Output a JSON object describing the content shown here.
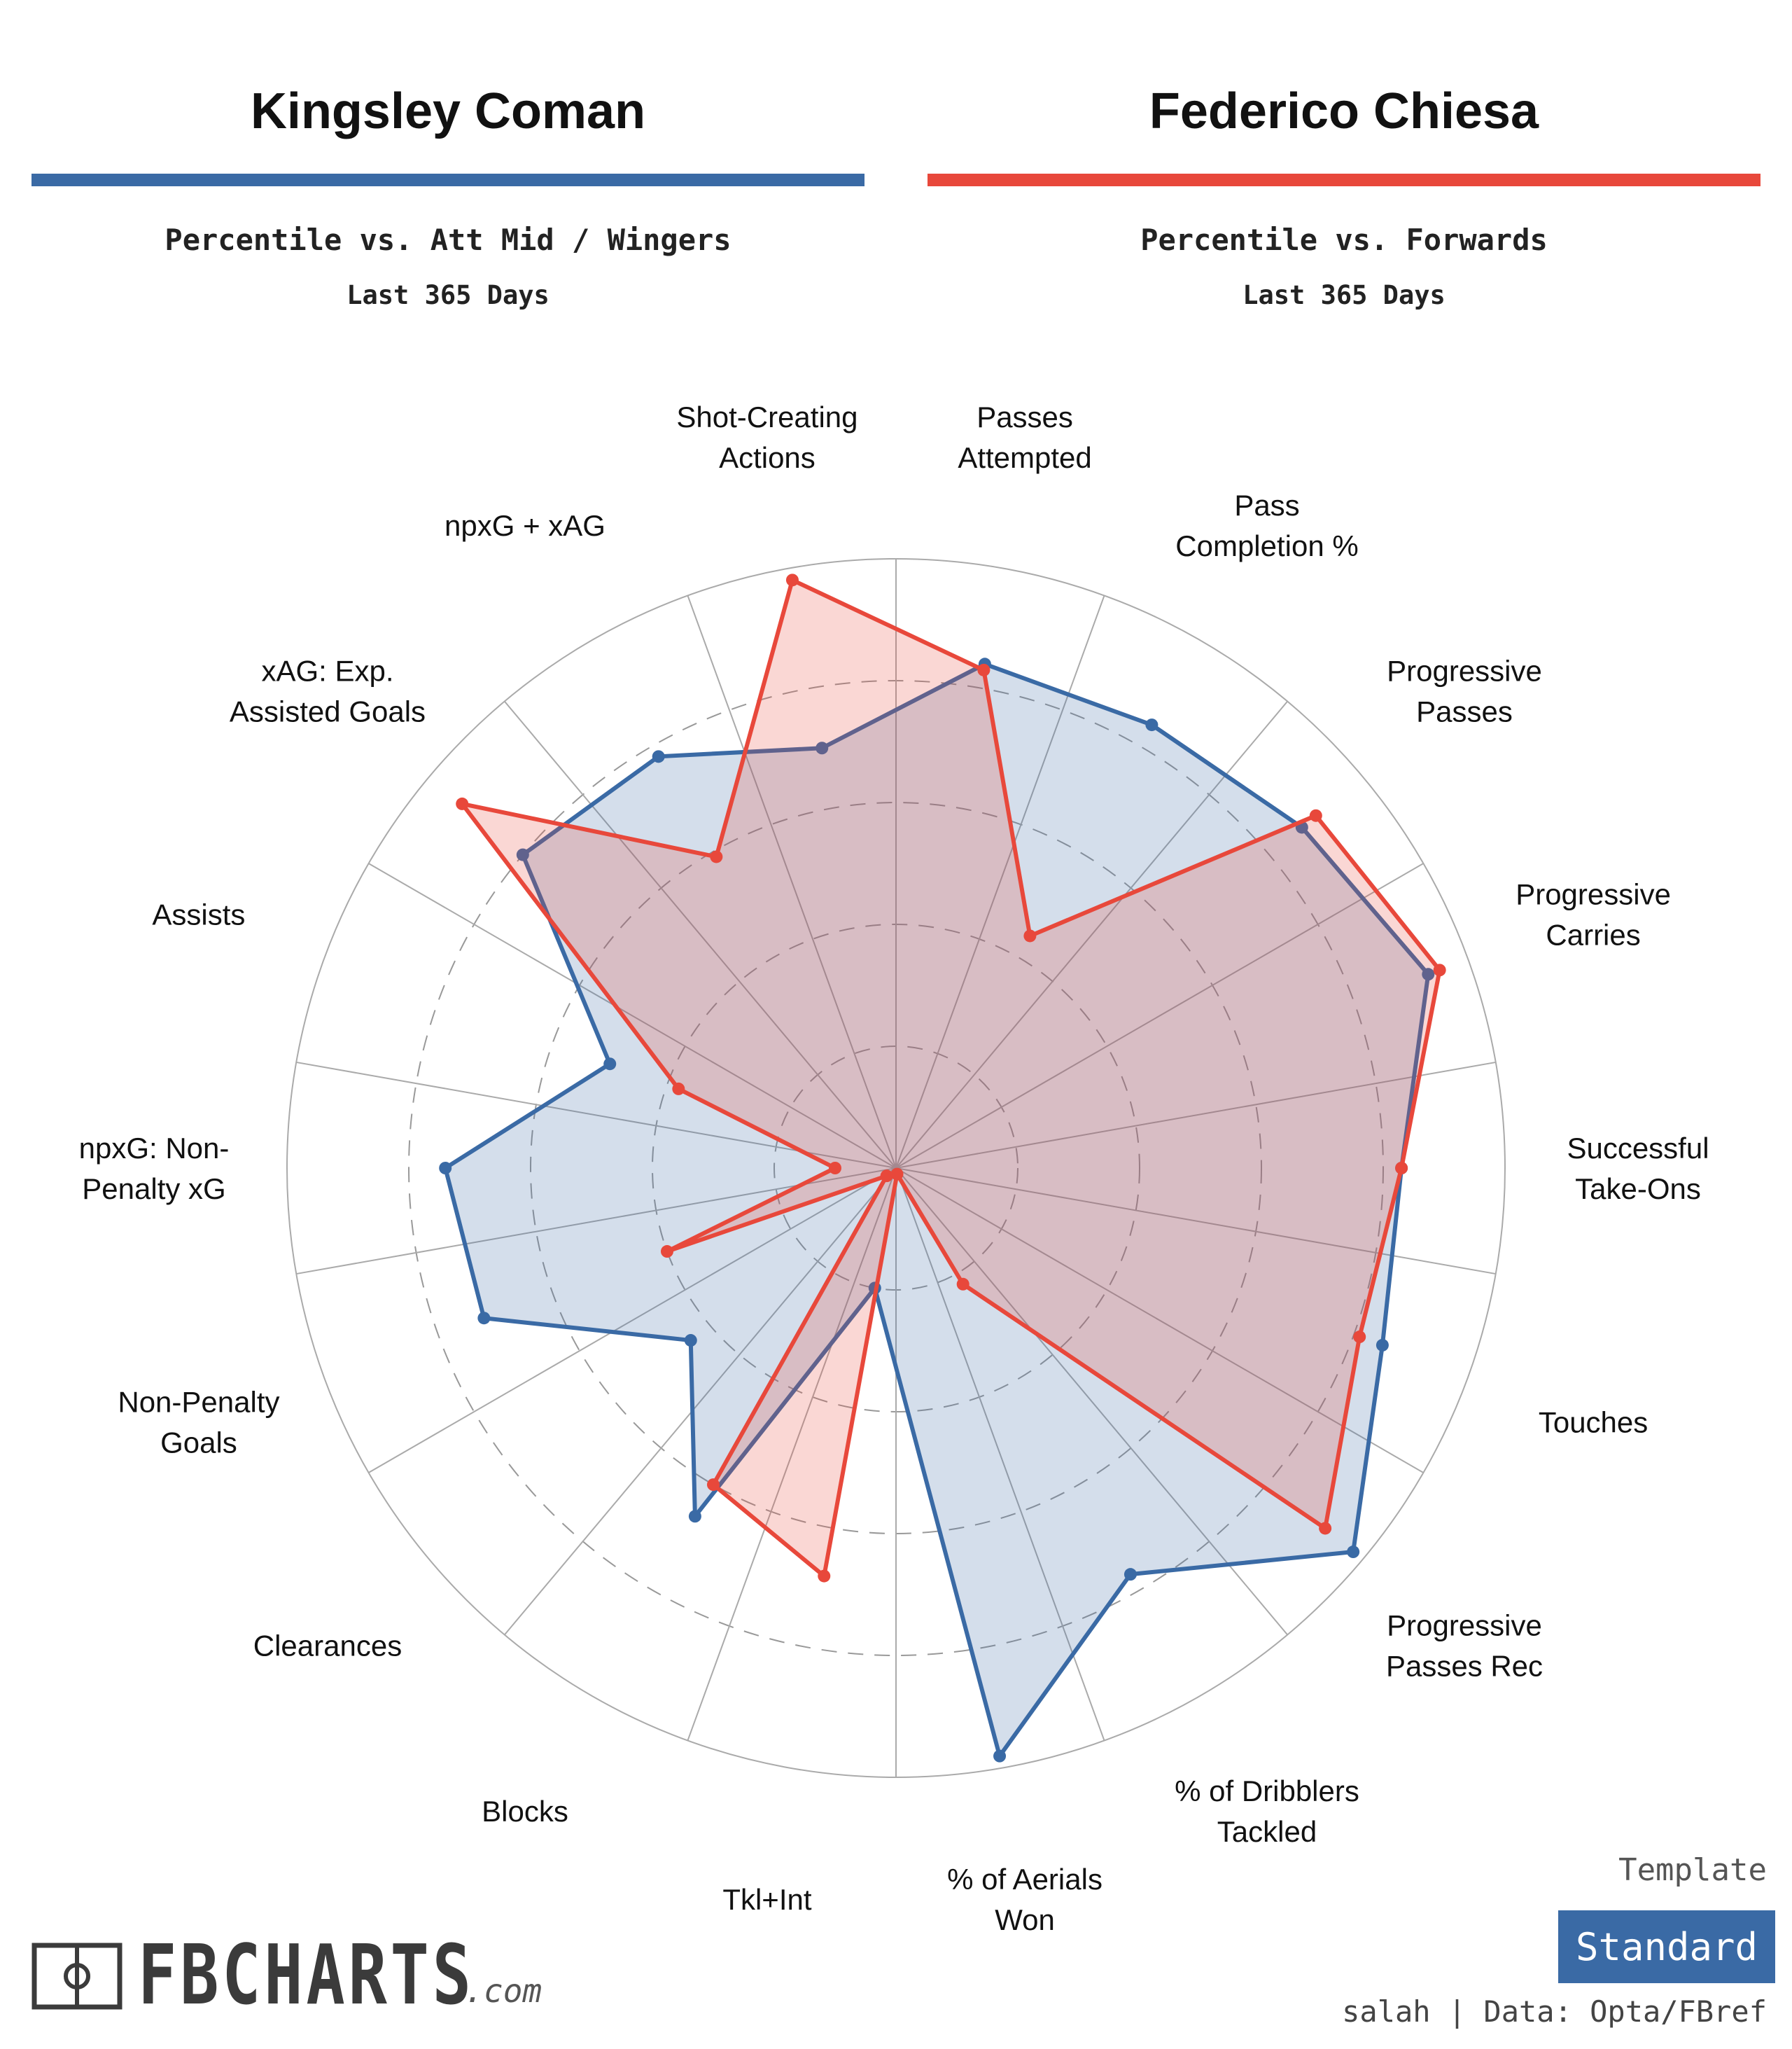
{
  "players": [
    {
      "name": "Kingsley Coman",
      "subtitle": "Percentile vs. Att Mid / Wingers",
      "period": "Last 365 Days",
      "color": "#3a6aa5"
    },
    {
      "name": "Federico Chiesa",
      "subtitle": "Percentile vs. Forwards",
      "period": "Last 365 Days",
      "color": "#e8483b"
    }
  ],
  "chart_data": {
    "type": "radar",
    "rmax": 100,
    "grid_rings": [
      20,
      40,
      60,
      80
    ],
    "categories": [
      "Successful|Take-Ons",
      "Progressive|Carries",
      "Progressive|Passes",
      "Pass|Completion %",
      "Passes|Attempted",
      "Shot-Creating|Actions",
      "npxG + xAG",
      "xAG: Exp.|Assisted Goals",
      "Assists",
      "npxG: Non-|Penalty xG",
      "Non-Penalty|Goals",
      "Clearances",
      "Blocks",
      "Tkl+Int",
      "% of Aerials|Won",
      "% of Dribblers|Tackled",
      "Progressive|Passes Rec",
      "Touches"
    ],
    "series": [
      {
        "name": "Kingsley Coman",
        "color": "#3a6aa5",
        "values": [
          83,
          93,
          87,
          84,
          84,
          70,
          78,
          80,
          50,
          74,
          72,
          44,
          66,
          20,
          98,
          77,
          98,
          85
        ]
      },
      {
        "name": "Federico Chiesa",
        "color": "#e8483b",
        "values": [
          83,
          95,
          90,
          44,
          83,
          98,
          59,
          93,
          38,
          10,
          40,
          2,
          60,
          68,
          1,
          22,
          92,
          81
        ]
      }
    ]
  },
  "template": {
    "label": "Template",
    "value": "Standard"
  },
  "credit": "salah | Data: Opta/FBref",
  "logo": {
    "text": "FBCHARTS",
    "suffix": ".com"
  }
}
